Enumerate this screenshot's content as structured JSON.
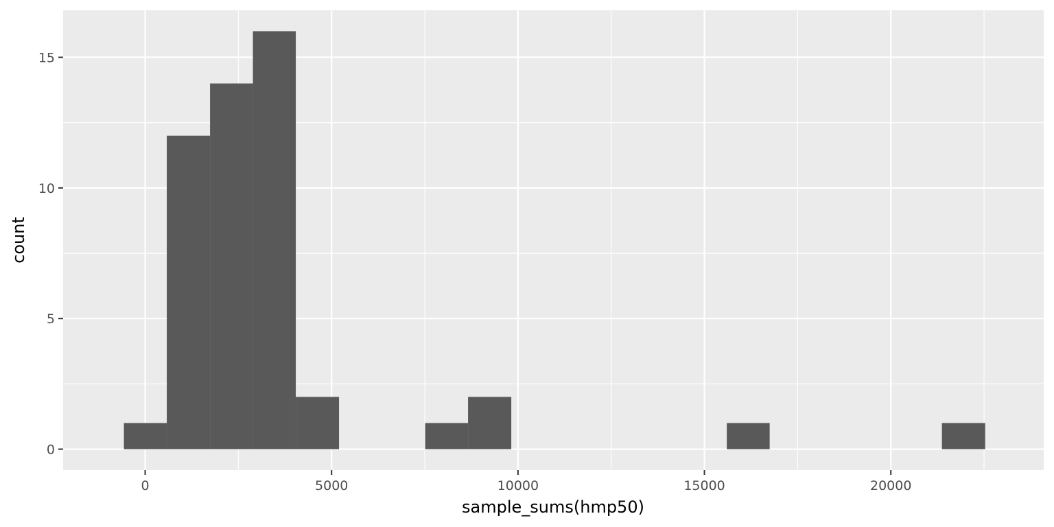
{
  "chart_data": {
    "type": "bar",
    "subtype": "histogram",
    "title": "",
    "xlabel": "sample_sums(hmp50)",
    "ylabel": "count",
    "xlim": [
      -2200,
      24100
    ],
    "ylim": [
      -0.8,
      16.8
    ],
    "x_ticks": [
      0,
      5000,
      10000,
      15000,
      20000
    ],
    "x_tick_labels": [
      "0",
      "5000",
      "10000",
      "15000",
      "20000"
    ],
    "y_ticks": [
      0,
      5,
      10,
      15
    ],
    "y_tick_labels": [
      "0",
      "5",
      "10",
      "15"
    ],
    "bins": [
      {
        "x0": -570,
        "x1": 580,
        "count": 1
      },
      {
        "x0": 580,
        "x1": 1740,
        "count": 12
      },
      {
        "x0": 1740,
        "x1": 2890,
        "count": 14
      },
      {
        "x0": 2890,
        "x1": 4040,
        "count": 16
      },
      {
        "x0": 4040,
        "x1": 5200,
        "count": 2
      },
      {
        "x0": 7510,
        "x1": 8660,
        "count": 1
      },
      {
        "x0": 8660,
        "x1": 9820,
        "count": 2
      },
      {
        "x0": 15600,
        "x1": 16750,
        "count": 1
      },
      {
        "x0": 21370,
        "x1": 22530,
        "count": 1
      }
    ],
    "grid": true,
    "legend": "none",
    "colors": {
      "panel_background": "#ebebeb",
      "grid": "#ffffff",
      "bar_fill": "#595959",
      "tick": "#333333"
    }
  }
}
